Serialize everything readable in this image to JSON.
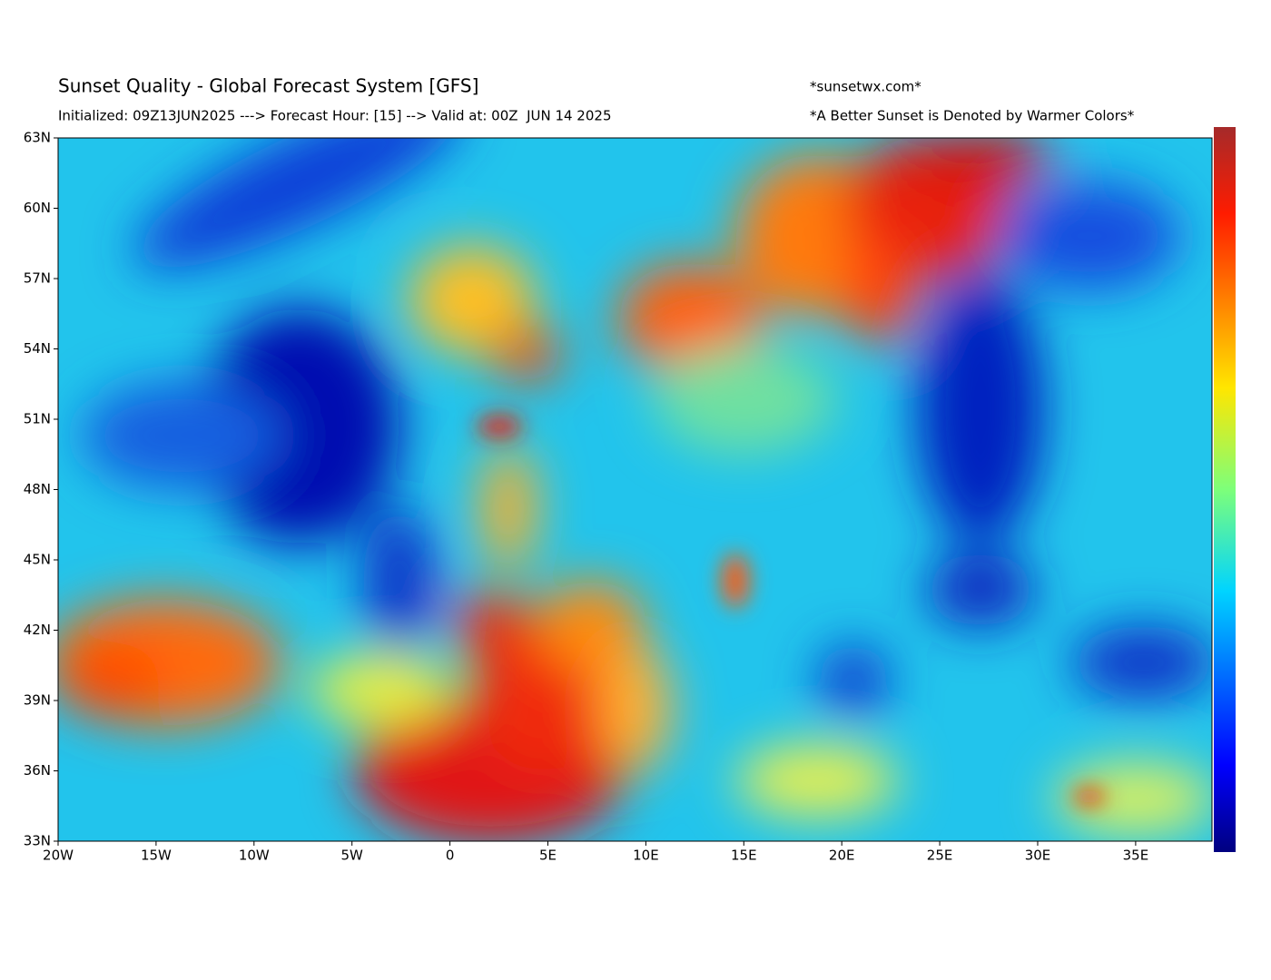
{
  "header": {
    "title": "Sunset Quality - Global Forecast System [GFS]",
    "subtitle": "Initialized: 09Z13JUN2025 ---> Forecast Hour: [15] --> Valid at: 00Z  JUN 14 2025",
    "site": "*sunsetwx.com*",
    "note": "*A Better Sunset is Denoted by Warmer Colors*"
  },
  "map": {
    "lat_labels": [
      "63N",
      "60N",
      "57N",
      "54N",
      "51N",
      "48N",
      "45N",
      "42N",
      "39N",
      "36N",
      "33N"
    ],
    "lon_labels": [
      "20W",
      "15W",
      "10W",
      "5W",
      "0",
      "5E",
      "10E",
      "15E",
      "20E",
      "25E",
      "30E",
      "35E"
    ]
  }
}
